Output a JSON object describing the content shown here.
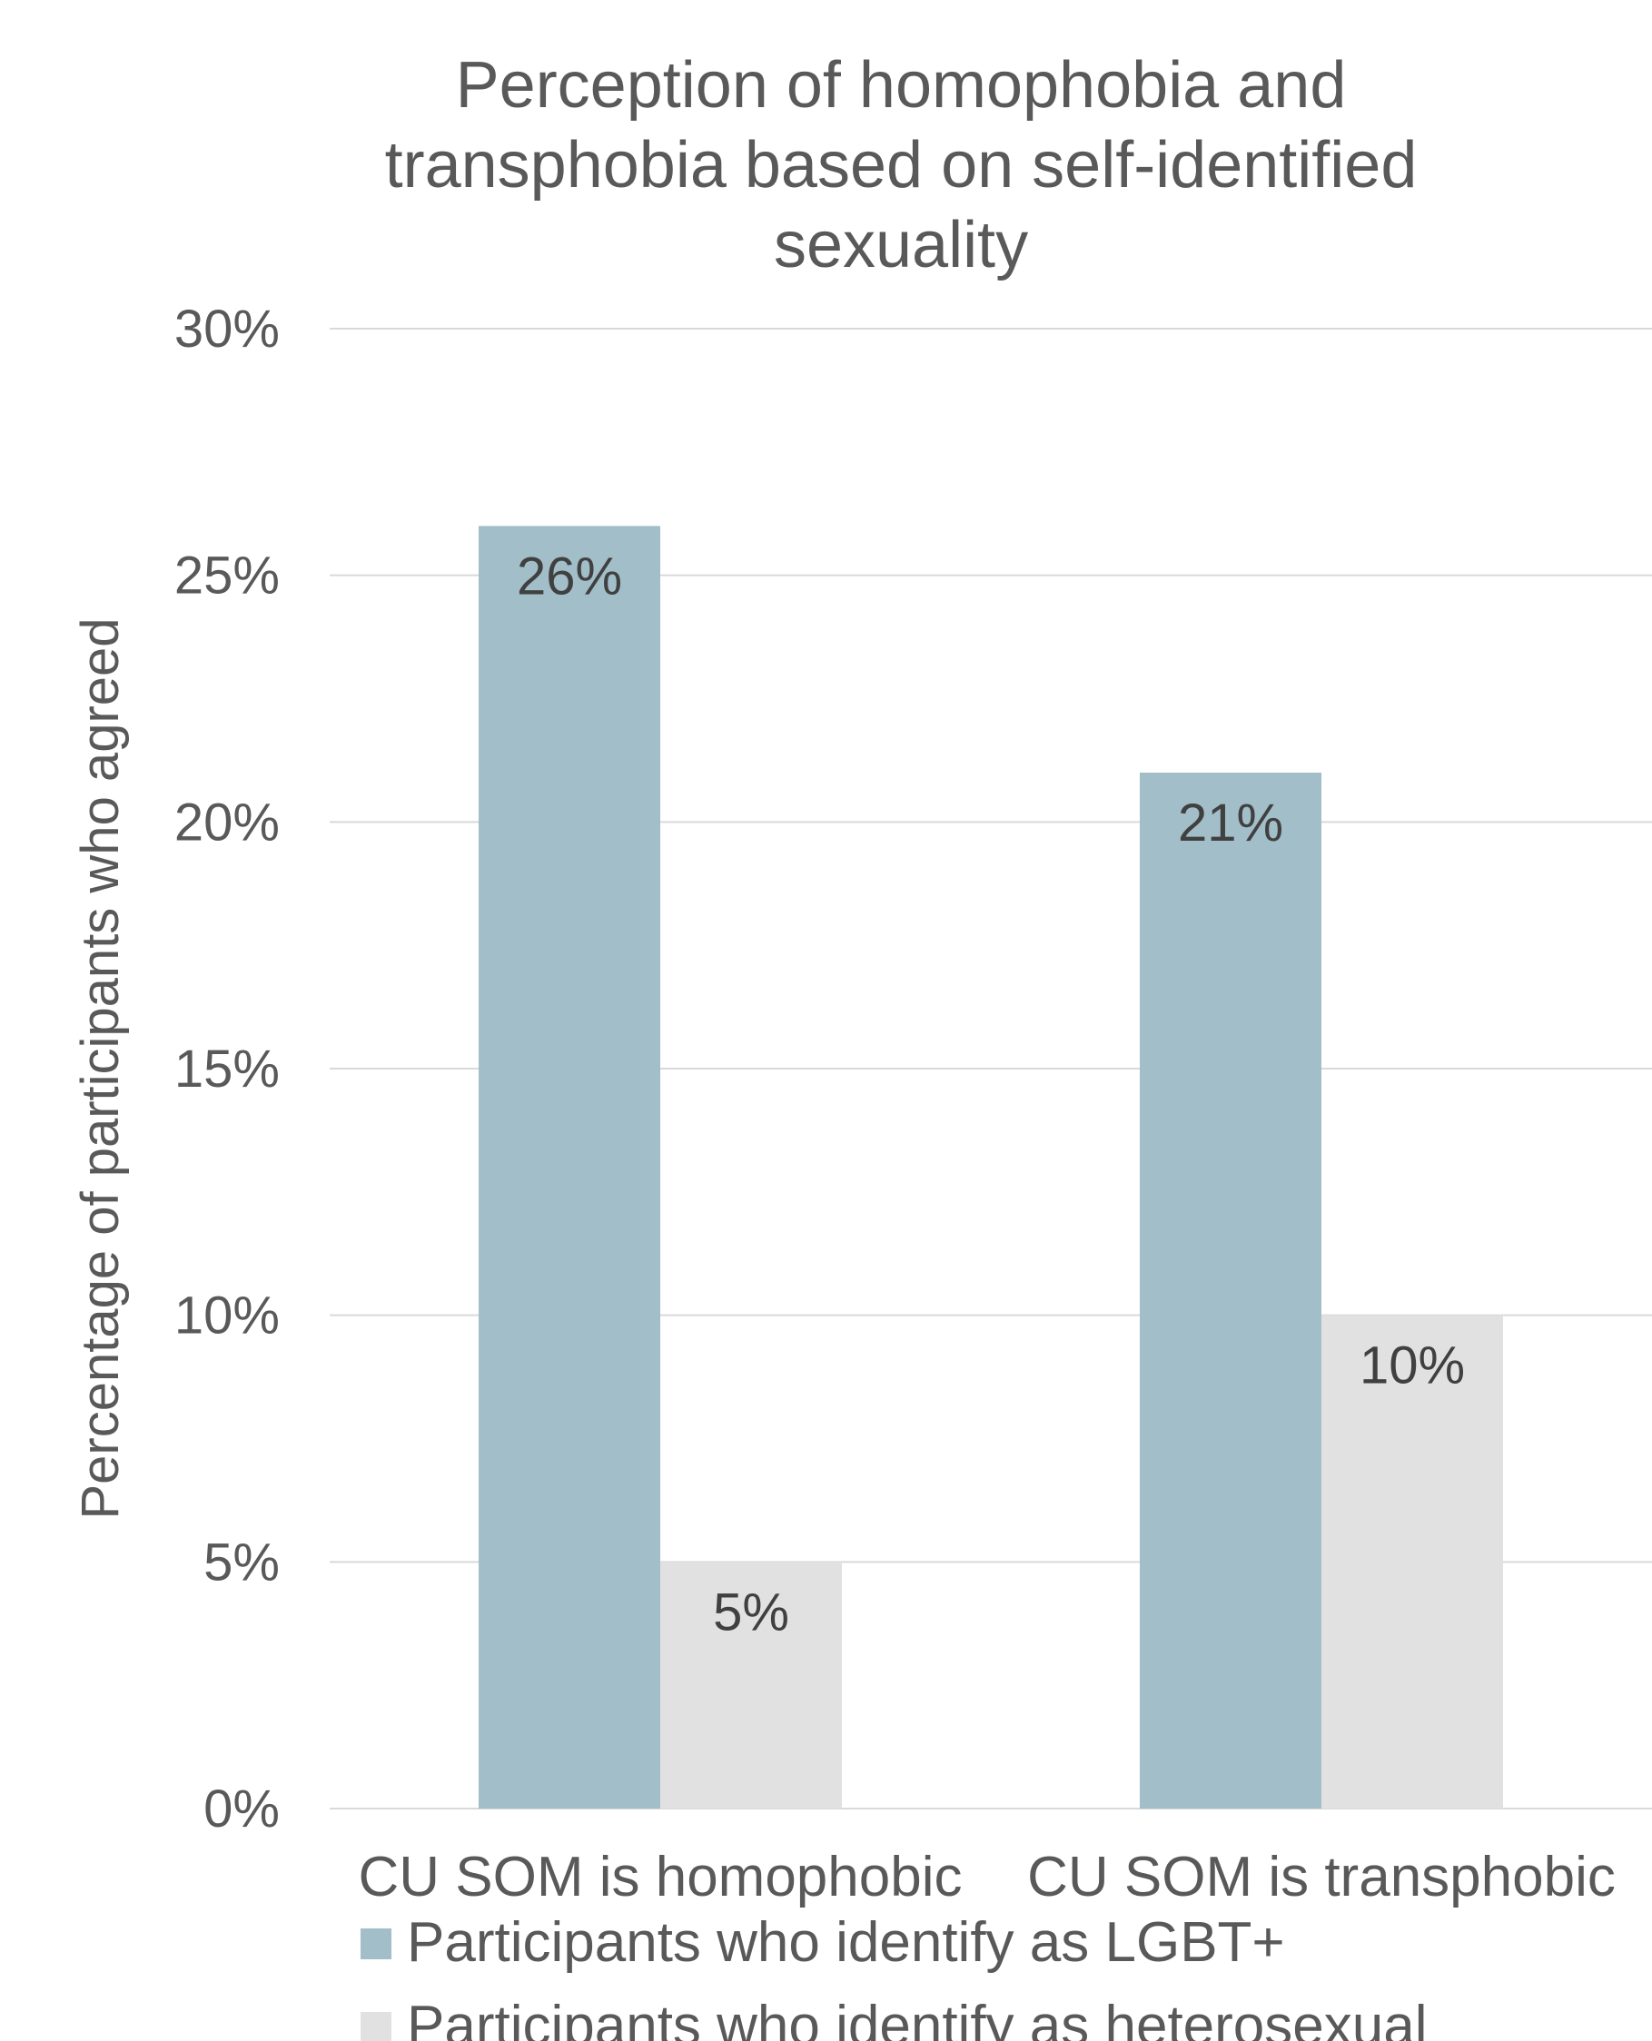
{
  "chart_data": {
    "type": "bar",
    "title": [
      "Perception of homophobia and",
      "transphobia based on self-identified",
      "sexuality"
    ],
    "ylabel": "Percentage of participants who agreed",
    "xlabel": "",
    "ylim": [
      0,
      30
    ],
    "yticks": [
      0,
      5,
      10,
      15,
      20,
      25,
      30
    ],
    "ytick_labels": [
      "0%",
      "5%",
      "10%",
      "15%",
      "20%",
      "25%",
      "30%"
    ],
    "grid": true,
    "legend_position": "bottom",
    "categories": [
      "CU SOM is homophobic",
      "CU SOM is transphobic"
    ],
    "series": [
      {
        "name": "Participants who identify as LGBT+",
        "values": [
          26,
          21
        ],
        "labels": [
          "26%",
          "21%"
        ],
        "color": "#a2bec8"
      },
      {
        "name": "Participants who identify as heterosexual",
        "values": [
          5,
          10
        ],
        "labels": [
          "5%",
          "10%"
        ],
        "color": "#e1e1e1"
      }
    ],
    "colors": {
      "text": "#595959",
      "data_label": "#404040",
      "grid": "#d9d9d9"
    }
  }
}
